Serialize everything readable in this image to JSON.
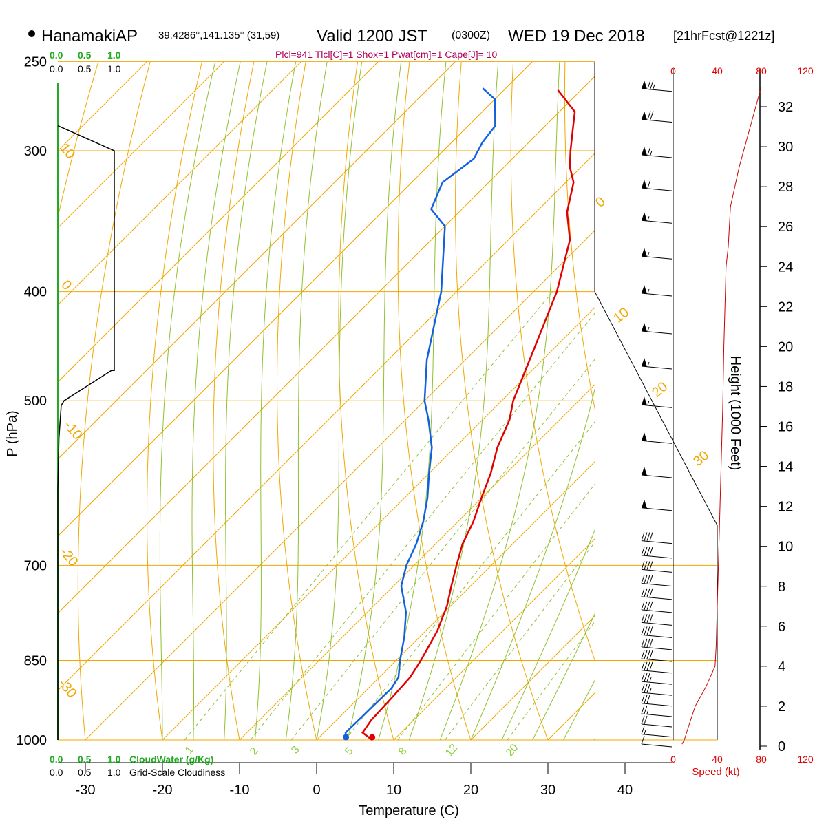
{
  "header": {
    "station": "HanamakiAP",
    "coords": "39.4286°,141.135° (31,59)",
    "valid_main": "Valid 1200 JST",
    "valid_z": "(0300Z)",
    "date": "WED 19 Dec 2018",
    "forecast": "[21hrFcst@1221z]",
    "indices": "Plcl=941 Tlcl[C]=1 Shox=1 Pwat[cm]=1 Cape[J]= 10"
  },
  "left_scale": {
    "top_green": [
      "0.0",
      "0.5",
      "1.0"
    ],
    "top_black": [
      "0.0",
      "0.5",
      "1.0"
    ],
    "bottom_green": [
      "0.0",
      "0.5",
      "1.0"
    ],
    "bottom_black": [
      "0.0",
      "0.5",
      "1.0"
    ],
    "cloudwater_label": "CloudWater (g/Kg)",
    "cloudiness_label": "Grid-Scale Cloudiness"
  },
  "speed_axis": {
    "ticks": [
      "0",
      "40",
      "80",
      "120"
    ],
    "label": "Speed (kt)"
  },
  "colors": {
    "temperature": "#e00000",
    "dewpoint": "#1060e0",
    "isotherm": "#f0a800",
    "dry_adiabat": "#f0a800",
    "moist_adiabat": "#90c030",
    "mixing_ratio": "#90c030",
    "cloud": "#000000",
    "speed": "#cc0000"
  },
  "chart_data": {
    "type": "line",
    "title": "Valid 1200 JST (0300Z) WED 19 Dec 2018",
    "xlabel": "Temperature (C)",
    "ylabel": "P (hPa)",
    "right_ylabel": "Height (1000 Feet)",
    "x_ticks": [
      -30,
      -20,
      -10,
      0,
      10,
      20,
      30,
      40
    ],
    "x_tick_labels": [
      "-30",
      "-20",
      "-10",
      "0",
      "10",
      "20",
      "30",
      "40"
    ],
    "y_ticks": [
      250,
      300,
      400,
      500,
      700,
      850,
      1000
    ],
    "y_tick_labels": [
      "250",
      "300",
      "400",
      "500",
      "700",
      "850",
      "1000"
    ],
    "xlim": [
      -34,
      46
    ],
    "ylim": [
      1000,
      250
    ],
    "yscale": "log",
    "height_ticks": [
      0,
      2,
      4,
      6,
      8,
      10,
      12,
      14,
      16,
      18,
      20,
      22,
      24,
      26,
      28,
      30,
      32
    ],
    "height_tick_labels": [
      "0",
      "2",
      "4",
      "6",
      "8",
      "10",
      "12",
      "14",
      "16",
      "18",
      "20",
      "22",
      "24",
      "26",
      "28",
      "30",
      "32"
    ],
    "isotherm_labels": [
      "10",
      "0",
      "-10",
      "-20",
      "-30"
    ],
    "dry_adiabat_labels": [
      "0",
      "10",
      "20",
      "30"
    ],
    "mixing_ratio_labels": [
      "1",
      "2",
      "3",
      "5",
      "8",
      "12",
      "20"
    ],
    "mixing_ratio_values": [
      1,
      2,
      3,
      5,
      8,
      12,
      20
    ],
    "series": [
      {
        "name": "Temperature",
        "points": [
          [
            7.2,
            1000
          ],
          [
            5,
            985
          ],
          [
            4.5,
            960
          ],
          [
            4.3,
            920
          ],
          [
            4.0,
            880
          ],
          [
            3.2,
            850
          ],
          [
            1.5,
            800
          ],
          [
            -0.5,
            760
          ],
          [
            -2.5,
            730
          ],
          [
            -4.5,
            700
          ],
          [
            -6.5,
            670
          ],
          [
            -8,
            640
          ],
          [
            -10,
            610
          ],
          [
            -12,
            580
          ],
          [
            -14.5,
            550
          ],
          [
            -16.5,
            520
          ],
          [
            -18.5,
            500
          ],
          [
            -22.5,
            450
          ],
          [
            -27,
            400
          ],
          [
            -32,
            360
          ],
          [
            -36,
            340
          ],
          [
            -39,
            320
          ],
          [
            -41.5,
            310
          ],
          [
            -43.5,
            300
          ],
          [
            -46,
            287
          ],
          [
            -48,
            277
          ],
          [
            -53,
            265
          ]
        ]
      },
      {
        "name": "Dewpoint",
        "points": [
          [
            3.8,
            1000
          ],
          [
            2.8,
            985
          ],
          [
            2.9,
            940
          ],
          [
            3.0,
            900
          ],
          [
            2.5,
            880
          ],
          [
            0.5,
            850
          ],
          [
            -2,
            810
          ],
          [
            -5,
            770
          ],
          [
            -9,
            730
          ],
          [
            -11,
            700
          ],
          [
            -12.5,
            670
          ],
          [
            -14.5,
            640
          ],
          [
            -17,
            610
          ],
          [
            -20,
            580
          ],
          [
            -23,
            550
          ],
          [
            -27,
            520
          ],
          [
            -30,
            500
          ],
          [
            -35,
            460
          ],
          [
            -42,
            400
          ],
          [
            -50,
            350
          ],
          [
            -54,
            338
          ],
          [
            -56,
            320
          ],
          [
            -55,
            305
          ],
          [
            -56,
            295
          ],
          [
            -56.5,
            285
          ],
          [
            -60,
            270
          ],
          [
            -63,
            264
          ]
        ]
      }
    ],
    "cloudiness": {
      "name": "Grid-Scale Cloudiness",
      "points": [
        [
          0.0,
          1000
        ],
        [
          0.0,
          600
        ],
        [
          0.02,
          540
        ],
        [
          0.06,
          505
        ],
        [
          0.11,
          500
        ],
        [
          0.95,
          470
        ],
        [
          1.0,
          470
        ],
        [
          1.0,
          300
        ],
        [
          0.0,
          285
        ]
      ]
    },
    "wind_speed": {
      "name": "Speed (kt)",
      "points": [
        [
          8,
          0.1
        ],
        [
          10,
          0.3
        ],
        [
          14,
          1
        ],
        [
          20,
          2
        ],
        [
          30,
          3
        ],
        [
          38,
          4
        ],
        [
          39,
          5
        ],
        [
          40,
          7
        ],
        [
          41,
          9
        ],
        [
          42,
          11
        ],
        [
          43,
          13
        ],
        [
          44,
          15
        ],
        [
          45,
          17
        ],
        [
          46,
          20
        ],
        [
          47,
          22
        ],
        [
          48,
          24
        ],
        [
          50,
          25
        ],
        [
          52,
          27
        ],
        [
          60,
          29
        ],
        [
          70,
          31
        ],
        [
          80,
          33
        ]
      ]
    },
    "wind_barbs": [
      {
        "p": 262,
        "speed": 75
      },
      {
        "p": 279,
        "speed": 70
      },
      {
        "p": 300,
        "speed": 65
      },
      {
        "p": 321,
        "speed": 60
      },
      {
        "p": 343,
        "speed": 55
      },
      {
        "p": 369,
        "speed": 55
      },
      {
        "p": 398,
        "speed": 55
      },
      {
        "p": 430,
        "speed": 55
      },
      {
        "p": 462,
        "speed": 55
      },
      {
        "p": 500,
        "speed": 55
      },
      {
        "p": 538,
        "speed": 50
      },
      {
        "p": 577,
        "speed": 50
      },
      {
        "p": 617,
        "speed": 50
      },
      {
        "p": 660,
        "speed": 40
      },
      {
        "p": 680,
        "speed": 40
      },
      {
        "p": 700,
        "speed": 40
      },
      {
        "p": 720,
        "speed": 40
      },
      {
        "p": 740,
        "speed": 40
      },
      {
        "p": 760,
        "speed": 40
      },
      {
        "p": 780,
        "speed": 40
      },
      {
        "p": 800,
        "speed": 40
      },
      {
        "p": 820,
        "speed": 40
      },
      {
        "p": 840,
        "speed": 40
      },
      {
        "p": 860,
        "speed": 40
      },
      {
        "p": 880,
        "speed": 35
      },
      {
        "p": 900,
        "speed": 35
      },
      {
        "p": 920,
        "speed": 30
      },
      {
        "p": 940,
        "speed": 25
      },
      {
        "p": 960,
        "speed": 20
      },
      {
        "p": 980,
        "speed": 15
      },
      {
        "p": 1000,
        "speed": 10
      }
    ]
  }
}
